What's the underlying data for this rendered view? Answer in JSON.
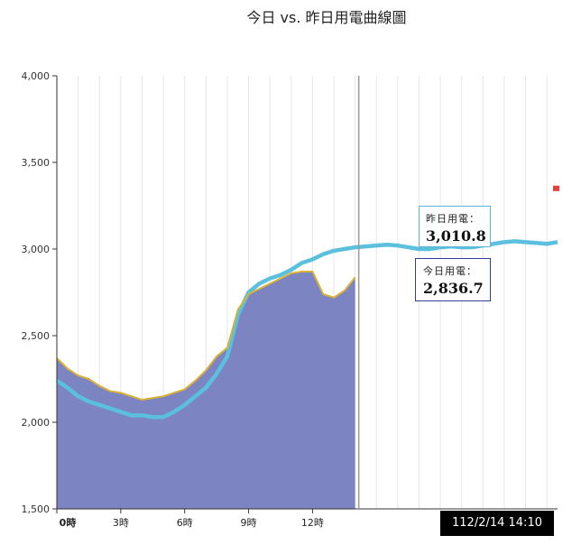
{
  "chart_data": {
    "type": "area",
    "title": "今日 vs. 昨日用電曲線圖",
    "xlabel": "",
    "ylabel": "",
    "ylim": [
      1500,
      4000
    ],
    "xlim": [
      0,
      23.5
    ],
    "y_ticks": [
      "4,000",
      "3,500",
      "3,000",
      "2,500",
      "2,000",
      "1,500"
    ],
    "y_tick_values": [
      4000,
      3500,
      3000,
      2500,
      2000,
      1500
    ],
    "x_ticks": [
      "0時",
      "3時",
      "6時",
      "9時",
      "12時"
    ],
    "x_tick_values": [
      0,
      3,
      6,
      9,
      12
    ],
    "grid": "vertical",
    "series": [
      {
        "key": "yesterday",
        "name": "昨日用電",
        "color": "#5bc0de",
        "x": [
          0,
          0.5,
          1,
          1.5,
          2,
          2.5,
          3,
          3.5,
          4,
          4.5,
          5,
          5.5,
          6,
          6.5,
          7,
          7.5,
          8,
          8.5,
          9,
          9.5,
          10,
          10.5,
          11,
          11.5,
          12,
          12.5,
          13,
          13.5,
          14,
          14.5,
          15,
          15.5,
          16,
          16.5,
          17,
          17.5,
          18,
          18.5,
          19,
          19.5,
          20,
          20.5,
          21,
          21.5,
          22,
          22.5,
          23,
          23.5
        ],
        "values": [
          2240,
          2200,
          2150,
          2120,
          2100,
          2080,
          2060,
          2040,
          2040,
          2030,
          2030,
          2060,
          2100,
          2150,
          2200,
          2280,
          2380,
          2620,
          2750,
          2800,
          2830,
          2850,
          2880,
          2920,
          2940,
          2970,
          2990,
          3000,
          3010,
          3015,
          3020,
          3025,
          3020,
          3010,
          3000,
          3000,
          3010,
          3015,
          3010,
          3010,
          3020,
          3030,
          3040,
          3045,
          3040,
          3035,
          3030,
          3040
        ]
      },
      {
        "key": "today",
        "name": "今日用電",
        "color": "#2f6ec1",
        "fill": "#7c84c1",
        "x": [
          0,
          0.5,
          1,
          1.5,
          2,
          2.5,
          3,
          3.5,
          4,
          4.5,
          5,
          5.5,
          6,
          6.5,
          7,
          7.5,
          8,
          8.5,
          9,
          9.5,
          10,
          10.5,
          11,
          11.5,
          12,
          12.5,
          13,
          13.5,
          14
        ],
        "values": [
          2370,
          2310,
          2270,
          2250,
          2210,
          2180,
          2170,
          2150,
          2130,
          2140,
          2150,
          2170,
          2190,
          2240,
          2300,
          2380,
          2430,
          2650,
          2740,
          2770,
          2800,
          2830,
          2860,
          2870,
          2870,
          2740,
          2720,
          2760,
          2836.7
        ]
      }
    ],
    "current_marker": {
      "x": 14.17,
      "time": "112/2/14 14:10"
    },
    "tooltips": {
      "yesterday": {
        "label": "昨日用電：",
        "value": "3,010.8"
      },
      "today": {
        "label": "今日用電：",
        "value": "2,836.7"
      }
    },
    "side_marker": {
      "value": 3350,
      "color": "#e5413b"
    },
    "line_color_outline": "#d9b23a"
  }
}
